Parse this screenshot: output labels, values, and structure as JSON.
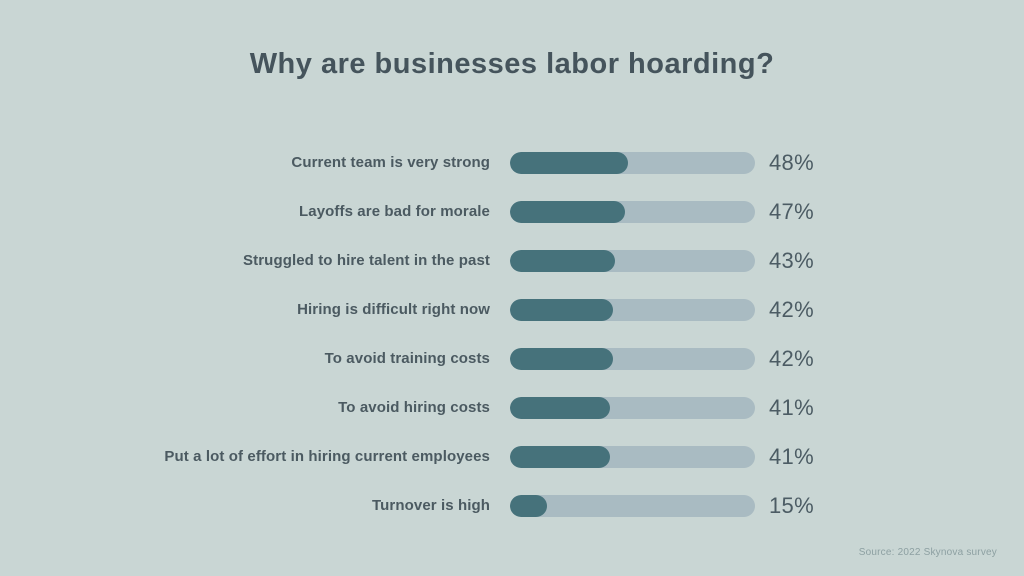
{
  "title": "Why are businesses labor hoarding?",
  "source": "Source: 2022 Skynova survey",
  "colors": {
    "background": "#c9d6d4",
    "bar_fill": "#46727b",
    "bar_track": "#a9bbc2",
    "title_text": "#45545c",
    "label_text": "#4b5a61",
    "value_text": "#4c5c64",
    "source_text": "#8da0a2"
  },
  "chart_data": {
    "type": "bar",
    "orientation": "horizontal",
    "title": "Why are businesses labor hoarding?",
    "categories": [
      "Current team is very strong",
      "Layoffs are bad for morale",
      "Struggled to hire talent in the past",
      "Hiring is difficult right now",
      "To avoid training costs",
      "To avoid hiring costs",
      "Put a lot of effort in hiring current employees",
      "Turnover is high"
    ],
    "values": [
      48,
      47,
      43,
      42,
      42,
      41,
      41,
      15
    ],
    "value_labels": [
      "48%",
      "47%",
      "43%",
      "42%",
      "42%",
      "41%",
      "41%",
      "15%"
    ],
    "value_unit": "%",
    "xlim": [
      0,
      100
    ],
    "xlabel": "",
    "ylabel": "",
    "grid": false,
    "legend": false,
    "annotation": "Source: 2022 Skynova survey"
  }
}
